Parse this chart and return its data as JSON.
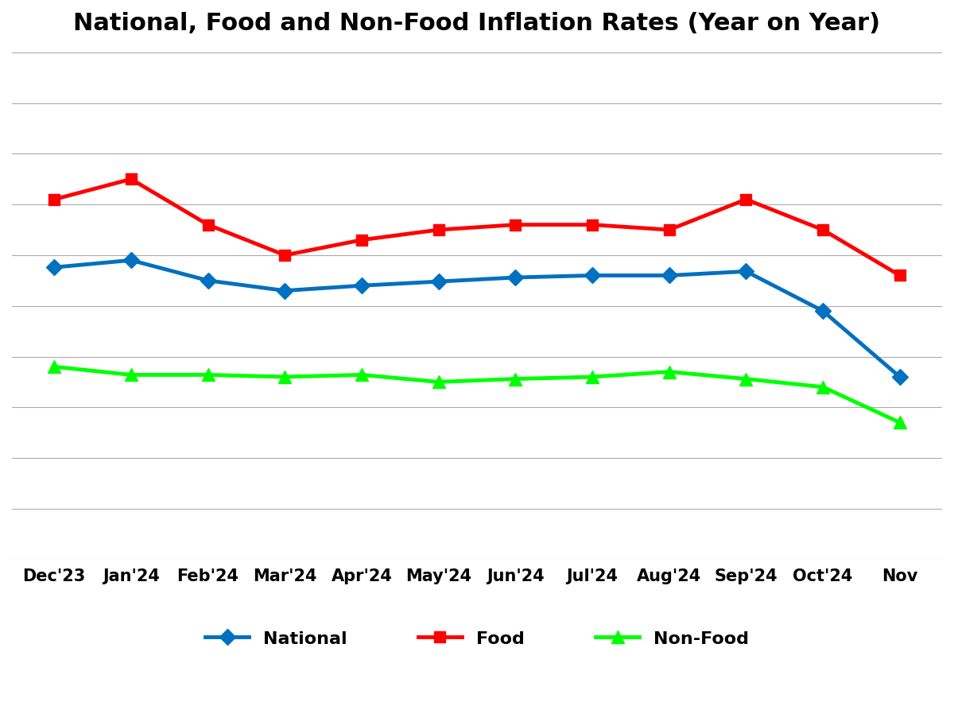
{
  "title": "National, Food and Non-Food Inflation Rates (Year on Year)",
  "categories": [
    "Dec'23",
    "Jan'24",
    "Feb'24",
    "Mar'24",
    "Apr'24",
    "May'24",
    "Jun'24",
    "Jul'24",
    "Aug'24",
    "Sep'24",
    "Oct'24",
    "Nov"
  ],
  "national": [
    28.8,
    29.5,
    27.5,
    26.5,
    27.0,
    27.4,
    27.8,
    28.0,
    28.0,
    28.4,
    24.5,
    18.0
  ],
  "food": [
    35.5,
    37.5,
    33.0,
    30.0,
    31.5,
    32.5,
    33.0,
    33.0,
    32.5,
    35.5,
    32.5,
    28.0
  ],
  "nonfood": [
    19.0,
    18.2,
    18.2,
    18.0,
    18.2,
    17.5,
    17.8,
    18.0,
    18.5,
    17.8,
    17.0,
    13.5
  ],
  "national_color": "#0070C0",
  "food_color": "#FF0000",
  "nonfood_color": "#00FF00",
  "background_color": "#FFFFFF",
  "grid_color": "#AAAAAA",
  "ylim_min": 0,
  "ylim_max": 50,
  "ytick_step": 5,
  "title_fontsize": 22,
  "legend_fontsize": 16,
  "tick_fontsize": 15,
  "line_width": 3.5,
  "marker_size": 10,
  "marker_size_tri": 12
}
